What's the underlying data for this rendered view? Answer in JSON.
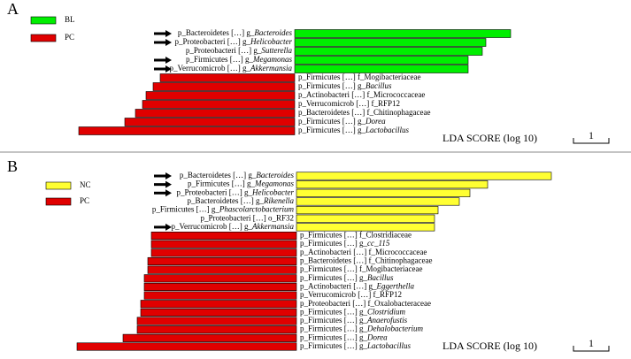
{
  "chart_data": [
    {
      "type": "bar",
      "panel": "A",
      "taxon_path": [
        "p_Bacteroidetes […] g_",
        "p_Proteobacteri […] g_",
        "p_Proteobacteri […] g_",
        "p_Firmicutes […] g_",
        "p_Verrucomicrob […] g_",
        "p_Firmicutes […] f_",
        "p_Firmicutes […] g_",
        "p_Actinobacteri […] f_",
        "p_Verrucomicrob […] f_",
        "p_Bacteroidetes […] f_",
        "p_Firmicutes […] g_",
        "p_Firmicutes […] g_"
      ],
      "categories": [
        "Bacteroides",
        "Helicobacter",
        "Sutterella",
        "Megamonas",
        "Akkermansia",
        "Mogibacteriaceae",
        "Bacillus",
        "Micrococcaceae",
        "RFP12",
        "Chitinophagaceae",
        "Dorea",
        "Lactobacillus"
      ],
      "arrows": [
        true,
        true,
        false,
        true,
        true,
        false,
        false,
        false,
        false,
        false,
        false,
        false
      ],
      "series": [
        {
          "name": "BL",
          "color": "#00ee00",
          "values": [
            6.1,
            5.4,
            5.3,
            4.9,
            4.9,
            null,
            null,
            null,
            null,
            null,
            null,
            null
          ]
        },
        {
          "name": "PC",
          "color": "#e00000",
          "values": [
            null,
            null,
            null,
            null,
            null,
            3.8,
            4.0,
            4.2,
            4.3,
            4.5,
            4.8,
            6.1
          ]
        }
      ],
      "xlabel": "LDA SCORE (log 10)",
      "scale_bar": 1
    },
    {
      "type": "bar",
      "panel": "B",
      "taxon_path": [
        "p_Bacteroidetes […] g_",
        "p_Firmicutes […] g_",
        "p_Proteobacteri […] g_",
        "p_Bacteroidetes […] g_",
        "p_Firmicutes […] g_",
        "p_Proteobacteri […] o_",
        "p_Verrucomicrob […] g_",
        "p_Firmicutes […] f_",
        "p_Firmicutes […] g_",
        "p_Actinobacteri […] f_",
        "p_Bacteroidetes […] f_",
        "p_Firmicutes […] f_",
        "p_Firmicutes […] g_",
        "p_Actinobacteri […] g_",
        "p_Verrucomicrob […] f_",
        "p_Proteobacteri […] f_",
        "p_Firmicutes […] g_",
        "p_Firmicutes […] g_",
        "p_Firmicutes […] g_",
        "p_Firmicutes […] g_",
        "p_Firmicutes […] g_"
      ],
      "categories": [
        "Bacteroides",
        "Megamonas",
        "Helicobacter",
        "Rikenella",
        "Phascolarctobacterium",
        "RF32",
        "Akkermansia",
        "Clostridiaceae",
        "cc_115",
        "Micrococcaceae",
        "Chitinophagaceae",
        "Mogibacteriaceae",
        "Bacillus",
        "Eggerthella",
        "RFP12",
        "Oxalobacteraceae",
        "Clostridium",
        "Anaerofustis",
        "Dehalobacterium",
        "Dorea",
        "Lactobacillus"
      ],
      "arrows": [
        true,
        true,
        true,
        false,
        false,
        false,
        true,
        false,
        false,
        false,
        false,
        false,
        false,
        false,
        false,
        false,
        false,
        false,
        false,
        false,
        false
      ],
      "series": [
        {
          "name": "NC",
          "color": "#ffff33",
          "values": [
            7.2,
            5.4,
            4.9,
            4.6,
            4.0,
            3.9,
            3.9,
            null,
            null,
            null,
            null,
            null,
            null,
            null,
            null,
            null,
            null,
            null,
            null,
            null,
            null
          ]
        },
        {
          "name": "PC",
          "color": "#e00000",
          "values": [
            null,
            null,
            null,
            null,
            null,
            null,
            null,
            4.1,
            4.1,
            4.1,
            4.2,
            4.2,
            4.3,
            4.3,
            4.3,
            4.4,
            4.4,
            4.5,
            4.5,
            4.9,
            6.2
          ]
        }
      ],
      "xlabel": "LDA SCORE (log 10)",
      "scale_bar": 1
    }
  ]
}
